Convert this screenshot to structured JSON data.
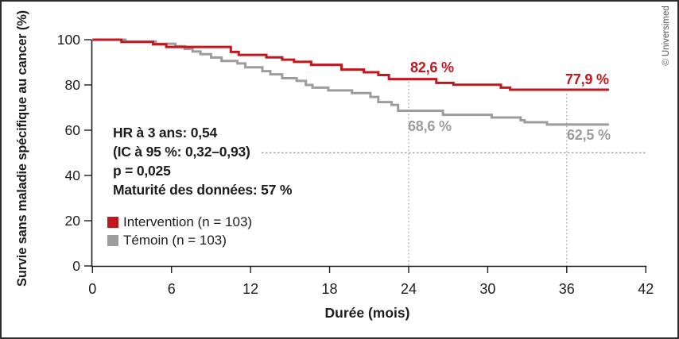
{
  "watermark": "© Universimed",
  "colors": {
    "intervention": "#c4161d",
    "temoin": "#9d9d9d",
    "axis": "#1d1d1b",
    "guide": "#9a9a9a",
    "text": "#1d1d1b"
  },
  "stats": {
    "hr": "HR à 3 ans: 0,54",
    "ci": "(IC à 95 %: 0,32–0,93)",
    "p": "p = 0,025",
    "maturity": "Maturité des données: 57 %"
  },
  "legend": {
    "items": [
      {
        "label": "Intervention (n = 103)",
        "color": "#c4161d"
      },
      {
        "label": "Témoin (n = 103)",
        "color": "#9d9d9d"
      }
    ]
  },
  "point_labels": {
    "intervention_24": "82,6 %",
    "intervention_36": "77,9 %",
    "temoin_24": "68,6 %",
    "temoin_36": "62,5 %"
  },
  "chart_data": {
    "type": "line",
    "subtype": "kaplan-meier-step",
    "xlabel": "Durée (mois)",
    "ylabel": "Survie sans maladie spécifique au cancer (%)",
    "xlim": [
      0,
      42
    ],
    "ylim": [
      0,
      100
    ],
    "x_ticks": [
      0,
      6,
      12,
      18,
      24,
      30,
      36,
      42
    ],
    "y_ticks": [
      0,
      20,
      40,
      60,
      80,
      100
    ],
    "guides": {
      "vlines": [
        {
          "t": 24,
          "top_pct": 81.4
        },
        {
          "t": 36,
          "top_pct": 76.1
        }
      ],
      "hline_pct": 50
    },
    "series": [
      {
        "name": "Témoin (n = 103)",
        "color": "#9d9d9d",
        "steps": [
          [
            0,
            100
          ],
          [
            2.5,
            99.2
          ],
          [
            4.8,
            98.2
          ],
          [
            6.3,
            97.1
          ],
          [
            7.0,
            95.9
          ],
          [
            7.6,
            94.8
          ],
          [
            8.2,
            93.6
          ],
          [
            9.0,
            92.1
          ],
          [
            9.8,
            90.6
          ],
          [
            11.0,
            89.5
          ],
          [
            11.6,
            87.8
          ],
          [
            12.9,
            86.1
          ],
          [
            13.5,
            84.7
          ],
          [
            14.4,
            83.0
          ],
          [
            15.5,
            81.8
          ],
          [
            16.2,
            80.0
          ],
          [
            16.7,
            78.8
          ],
          [
            17.9,
            77.6
          ],
          [
            19.7,
            76.4
          ],
          [
            21.1,
            74.7
          ],
          [
            21.7,
            72.4
          ],
          [
            22.7,
            71.2
          ],
          [
            23.2,
            68.6
          ],
          [
            26.6,
            66.8
          ],
          [
            30.3,
            65.6
          ],
          [
            32.5,
            64.4
          ],
          [
            32.8,
            63.5
          ],
          [
            34.5,
            62.5
          ],
          [
            39.2,
            62.5
          ]
        ]
      },
      {
        "name": "Intervention (n = 103)",
        "color": "#c4161d",
        "steps": [
          [
            0,
            100
          ],
          [
            2.2,
            99.0
          ],
          [
            4.6,
            98.0
          ],
          [
            5.6,
            96.8
          ],
          [
            10.5,
            94.6
          ],
          [
            11.1,
            93.3
          ],
          [
            13.2,
            92.2
          ],
          [
            14.4,
            91.2
          ],
          [
            15.3,
            90.2
          ],
          [
            16.6,
            88.9
          ],
          [
            18.9,
            86.8
          ],
          [
            20.6,
            85.6
          ],
          [
            21.7,
            84.4
          ],
          [
            22.5,
            82.6
          ],
          [
            26.1,
            80.9
          ],
          [
            27.4,
            80.1
          ],
          [
            31.0,
            78.8
          ],
          [
            31.7,
            77.9
          ],
          [
            39.2,
            77.9
          ]
        ]
      }
    ]
  }
}
